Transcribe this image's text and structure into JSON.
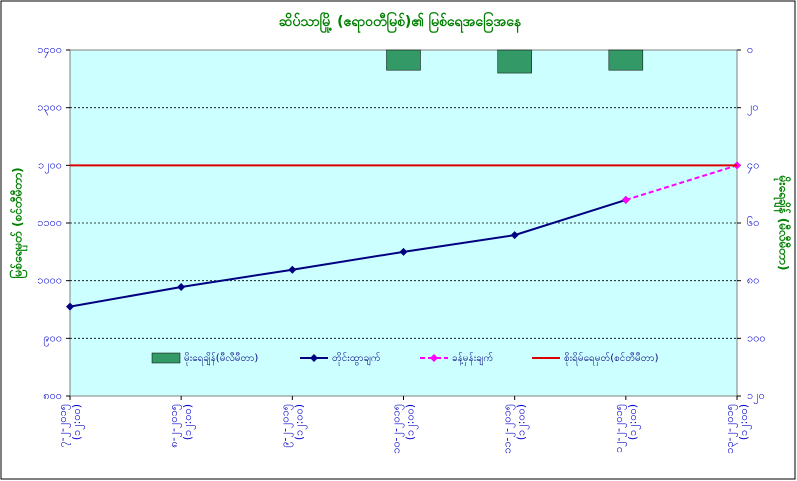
{
  "chart_data": {
    "type": "line",
    "title": "ဆိပ်သာမြို့ (ဧရာဝတီမြစ်)၏ မြစ်ရေအခြေအနေ",
    "y_label": "မြစ်ရေမှတ် (စင်တီမီတာ)",
    "y2_label": "မိုးရေချိန် (မီလီမီတာ)",
    "categories": [
      "၇-၂-၂၀၁၅ (၁၂:၀၀)",
      "၈-၂-၂၀၁၅ (၁၂:၀၀)",
      "၉-၂-၂၀၁၅ (၁၂:၀၀)",
      "၁၀-၂-၂၀၁၅ (၁၂:၀၀)",
      "၁၁-၂-၂၀၁၅ (၁၂:၀၀)",
      "၁၂-၂-၂၀၁၅ (၁၂:၀၀)",
      "၁၃-၂-၂၀၁၅ (၁၂:၀၀)"
    ],
    "ylim": [
      800,
      1400
    ],
    "yticks": [
      {
        "value": 800,
        "label": "၈၀၀"
      },
      {
        "value": 900,
        "label": "၉၀၀"
      },
      {
        "value": 1000,
        "label": "၁၀၀၀"
      },
      {
        "value": 1100,
        "label": "၁၁၀၀"
      },
      {
        "value": 1200,
        "label": "၁၂၀၀"
      },
      {
        "value": 1300,
        "label": "၁၃၀၀"
      },
      {
        "value": 1400,
        "label": "၁၄၀၀"
      }
    ],
    "y2lim": [
      120,
      0
    ],
    "y2ticks": [
      {
        "value": 0,
        "label": "၀"
      },
      {
        "value": 20,
        "label": "၂၀"
      },
      {
        "value": 40,
        "label": "၄၀"
      },
      {
        "value": 60,
        "label": "၆၀"
      },
      {
        "value": 80,
        "label": "၈၀"
      },
      {
        "value": 100,
        "label": "၁၀၀"
      },
      {
        "value": 120,
        "label": "၁၂၀"
      }
    ],
    "grid": true,
    "series": [
      {
        "name": "မိုးရေချိန်(မီလီမီတာ)",
        "type": "bar",
        "axis": "y2",
        "color": "#339966",
        "values": [
          null,
          null,
          null,
          7,
          8,
          7,
          null
        ]
      },
      {
        "name": "တိုင်းထွာချက်",
        "type": "line",
        "color": "#000080",
        "values": [
          955,
          989,
          1019,
          1050,
          1079,
          1140,
          null
        ]
      },
      {
        "name": "ခန့်မှန်းချက်",
        "type": "line",
        "color": "#ff00ff",
        "dashed": true,
        "values": [
          null,
          null,
          null,
          null,
          null,
          1140,
          1200
        ]
      },
      {
        "name": "စိုးရိမ်ရေမှတ်(စင်တီမီတာ)",
        "type": "line",
        "color": "#dd0000",
        "markers": false,
        "values": [
          1200,
          1200,
          1200,
          1200,
          1200,
          1200,
          1200
        ]
      }
    ]
  }
}
